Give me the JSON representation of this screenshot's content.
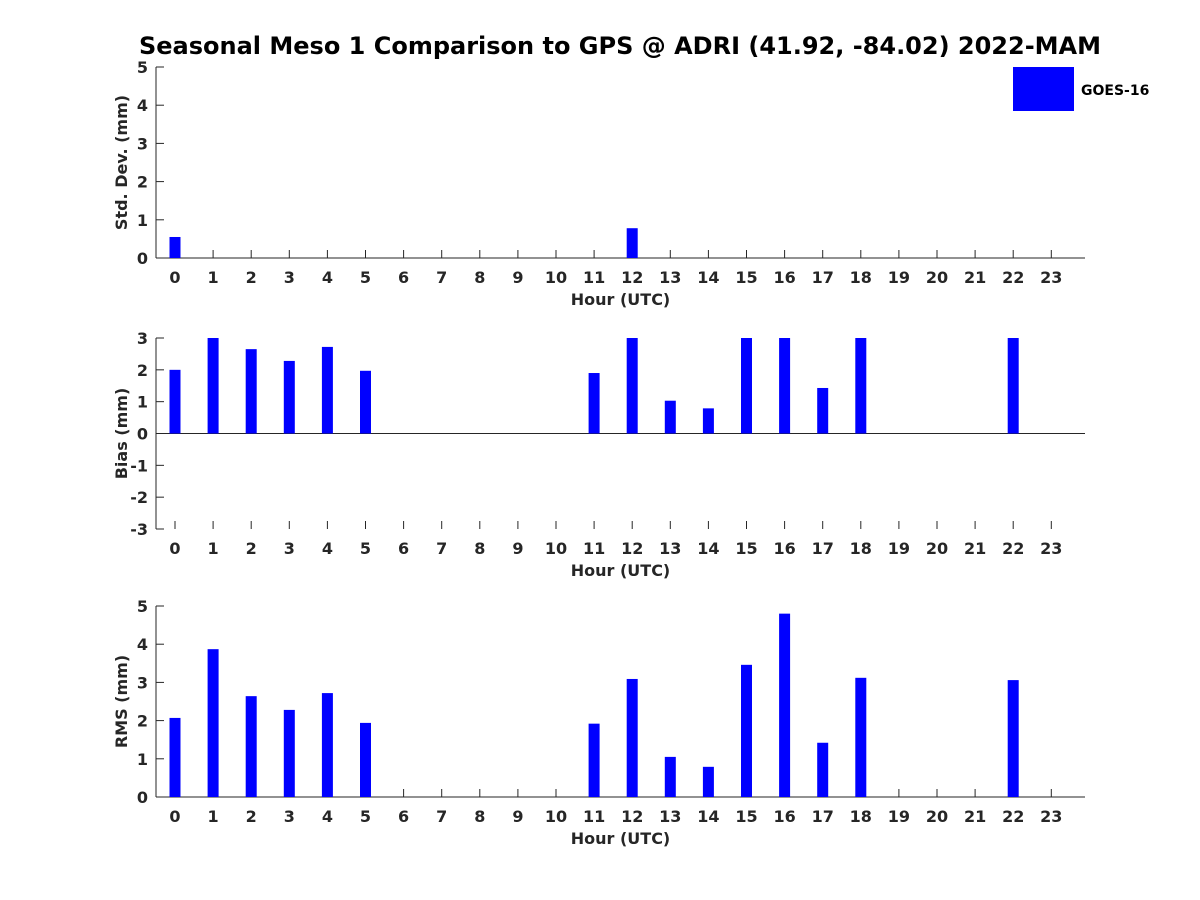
{
  "title": "Seasonal Meso 1 Comparison to GPS @ ADRI (41.92, -84.02) 2022-MAM",
  "legend": {
    "label": "GOES-16",
    "color": "#0000ff",
    "placement": "top-right"
  },
  "chart_data": [
    {
      "type": "bar",
      "xlabel": "Hour (UTC)",
      "ylabel": "Std. Dev. (mm)",
      "ylim": [
        0,
        5
      ],
      "yticks": [
        "0",
        "1",
        "2",
        "3",
        "4",
        "5"
      ],
      "categories": [
        "0",
        "1",
        "2",
        "3",
        "4",
        "5",
        "6",
        "7",
        "8",
        "9",
        "10",
        "11",
        "12",
        "13",
        "14",
        "15",
        "16",
        "17",
        "18",
        "19",
        "20",
        "21",
        "22",
        "23"
      ],
      "series": [
        {
          "name": "GOES-16",
          "values": [
            0.55,
            null,
            null,
            null,
            null,
            null,
            null,
            null,
            null,
            null,
            null,
            null,
            0.78,
            null,
            null,
            null,
            null,
            null,
            null,
            null,
            null,
            null,
            null,
            null
          ]
        }
      ]
    },
    {
      "type": "bar",
      "xlabel": "Hour (UTC)",
      "ylabel": "Bias (mm)",
      "ylim": [
        -3,
        3
      ],
      "yticks": [
        "-3",
        "-2",
        "-1",
        "0",
        "1",
        "2",
        "3"
      ],
      "categories": [
        "0",
        "1",
        "2",
        "3",
        "4",
        "5",
        "6",
        "7",
        "8",
        "9",
        "10",
        "11",
        "12",
        "13",
        "14",
        "15",
        "16",
        "17",
        "18",
        "19",
        "20",
        "21",
        "22",
        "23"
      ],
      "series": [
        {
          "name": "GOES-16",
          "values": [
            2.0,
            3.0,
            2.65,
            2.28,
            2.72,
            1.97,
            null,
            null,
            null,
            null,
            null,
            1.9,
            3.0,
            1.03,
            0.79,
            3.0,
            3.0,
            1.43,
            3.0,
            null,
            null,
            null,
            3.0,
            null
          ]
        }
      ]
    },
    {
      "type": "bar",
      "xlabel": "Hour (UTC)",
      "ylabel": "RMS (mm)",
      "ylim": [
        0,
        5
      ],
      "yticks": [
        "0",
        "1",
        "2",
        "3",
        "4",
        "5"
      ],
      "categories": [
        "0",
        "1",
        "2",
        "3",
        "4",
        "5",
        "6",
        "7",
        "8",
        "9",
        "10",
        "11",
        "12",
        "13",
        "14",
        "15",
        "16",
        "17",
        "18",
        "19",
        "20",
        "21",
        "22",
        "23"
      ],
      "series": [
        {
          "name": "GOES-16",
          "values": [
            2.07,
            3.87,
            2.64,
            2.28,
            2.72,
            1.94,
            null,
            null,
            null,
            null,
            null,
            1.92,
            3.09,
            1.05,
            0.79,
            3.46,
            4.8,
            1.42,
            3.12,
            null,
            null,
            null,
            3.06,
            null
          ]
        }
      ]
    }
  ]
}
